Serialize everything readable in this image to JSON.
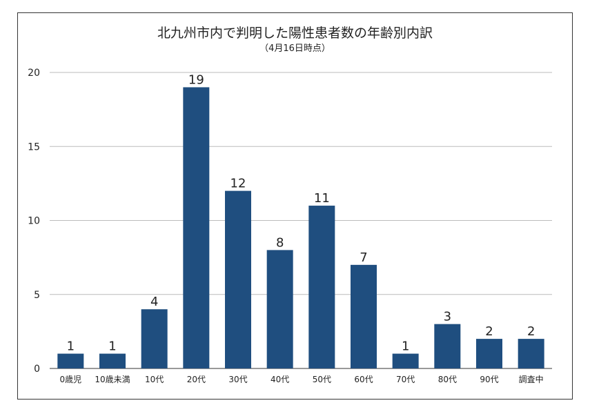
{
  "chart_data": {
    "type": "bar",
    "title": "北九州市内で判明した陽性患者数の年齢別内訳",
    "subtitle": "（4月16日時点）",
    "categories": [
      "0歳児",
      "10歳未満",
      "10代",
      "20代",
      "30代",
      "40代",
      "50代",
      "60代",
      "70代",
      "80代",
      "90代",
      "調査中"
    ],
    "values": [
      1,
      1,
      4,
      19,
      12,
      8,
      11,
      7,
      1,
      3,
      2,
      2
    ],
    "ylim": [
      0,
      20
    ],
    "yticks": [
      0,
      5,
      10,
      15,
      20
    ],
    "grid": true,
    "bar_color": "#1f4e7f",
    "xlabel": "",
    "ylabel": ""
  }
}
